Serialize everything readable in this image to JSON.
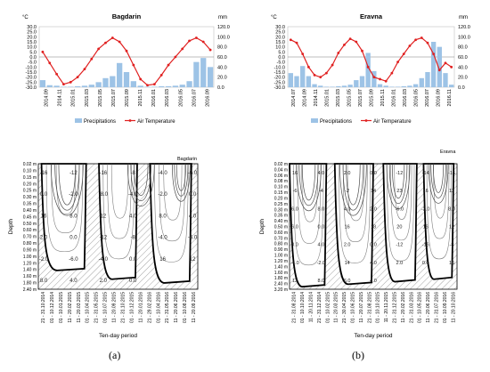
{
  "panel_labels": {
    "a": "(a)",
    "b": "(b)"
  },
  "colors": {
    "precip": "#9dc3e6",
    "temp": "#e02020",
    "zero_line": "#000000",
    "iso_thin": "#7f7f7f"
  },
  "chart_data": [
    {
      "type": "bar+line",
      "title": "Bagdarin",
      "left_unit": "°C",
      "right_unit": "mm",
      "left_ticks": [
        "30.0",
        "25.0",
        "20.0",
        "15.0",
        "10.0",
        "5.0",
        "0.0",
        "-5.0",
        "-10.0",
        "-15.0",
        "-20.0",
        "-25.0",
        "-30.0"
      ],
      "right_ticks": [
        "120.0",
        "100.0",
        "80.0",
        "60.0",
        "40.0",
        "20.0",
        "0.0"
      ],
      "ylim_left": [
        -30,
        30
      ],
      "ylim_right": [
        0,
        120
      ],
      "x_ticks": [
        "2014.09",
        "2014.11",
        "2015.01",
        "2015.03",
        "2015.05",
        "2015.07",
        "2015.09",
        "2015.11",
        "2016.01",
        "2016.03",
        "2016.05",
        "2016.07",
        "2016.09"
      ],
      "legend": [
        "Precipitations",
        "Air Temperature"
      ],
      "series": [
        {
          "name": "Precipitations",
          "kind": "bar",
          "values": [
            14,
            4,
            3,
            1,
            1,
            2,
            3,
            5,
            10,
            18,
            22,
            48,
            30,
            12,
            3,
            1,
            1,
            2,
            2,
            3,
            5,
            12,
            50,
            58,
            40
          ]
        },
        {
          "name": "Air Temperature",
          "kind": "line",
          "values": [
            5,
            -6,
            -17,
            -27,
            -25,
            -20,
            -12,
            -2,
            8,
            14,
            19,
            15,
            6,
            -8,
            -22,
            -28,
            -27,
            -18,
            -8,
            0,
            8,
            16,
            19,
            15,
            7
          ]
        }
      ]
    },
    {
      "type": "bar+line",
      "title": "Eravna",
      "left_unit": "°C",
      "right_unit": "mm",
      "left_ticks": [
        "30.0",
        "25.0",
        "20.0",
        "15.0",
        "10.0",
        "5.0",
        "0.0",
        "-5.0",
        "-10.0",
        "-15.0",
        "-20.0",
        "-25.0",
        "-30.0"
      ],
      "right_ticks": [
        "120.0",
        "100.0",
        "80.0",
        "60.0",
        "40.0",
        "20.0",
        "0.0"
      ],
      "ylim_left": [
        -30,
        30
      ],
      "ylim_right": [
        0,
        120
      ],
      "x_ticks": [
        "2014.07",
        "2014.09",
        "2014.11",
        "2015.01",
        "2015.03",
        "2015.05",
        "2015.07",
        "2015.09",
        "2015.11",
        "2016.01",
        "2016.03",
        "2016.05",
        "2016.07",
        "2016.09",
        "2016.11"
      ],
      "legend": [
        "Precipitations",
        "Air Temperature"
      ],
      "series": [
        {
          "name": "Precipitations",
          "kind": "bar",
          "values": [
            28,
            22,
            42,
            22,
            6,
            3,
            1,
            1,
            2,
            3,
            5,
            14,
            22,
            68,
            32,
            6,
            3,
            1,
            1,
            2,
            3,
            6,
            18,
            30,
            90,
            80,
            28,
            5
          ]
        },
        {
          "name": "Air Temperature",
          "kind": "line",
          "values": [
            17,
            14,
            3,
            -10,
            -18,
            -20,
            -16,
            -8,
            4,
            12,
            18,
            15,
            6,
            -10,
            -20,
            -22,
            -24,
            -16,
            -5,
            3,
            11,
            17,
            19,
            14,
            3,
            -13,
            -6,
            -10
          ]
        }
      ]
    },
    {
      "type": "contour",
      "title": "Bagdarin",
      "ylabel": "Depth",
      "xlabel": "Ten-day period",
      "y_ticks": [
        "0.02 m",
        "0.10 m",
        "0.15 m",
        "0.20 m",
        "0.25 m",
        "0.30 m",
        "0.35 m",
        "0.40 m",
        "0.45 m",
        "0.50 m",
        "0.60 m",
        "0.70 m",
        "0.80 m",
        "0.90 m",
        "1.00 m",
        "1.20 m",
        "1.40 m",
        "1.60 m",
        "1.80 m",
        "2.40 m"
      ],
      "x_ticks": [
        "21 - 31.10.2014",
        "01 - 10.12.2014",
        "01 - 10.01.2015",
        "11 - 20.02.2015",
        "11 - 20.03.2015",
        "01 - 10.04.2015",
        "21 - 31.05.2015",
        "01 - 10.07.2015",
        "11 - 20.09.2015",
        "21 - 31.10.2015",
        "01 - 10.12.2015",
        "11 - 20.01.2016",
        "21 - 29.02.2016",
        "01 - 10.04.2016",
        "21 - 31.05.2016",
        "11 - 20.06.2016",
        "01 - 10.08.2016",
        "11 - 20.09.2016"
      ],
      "labels": [
        "-16",
        "-12",
        "-16",
        "-8",
        "-4.0",
        "-6.0",
        "0.0",
        "-2.0",
        "-8.0",
        "-4.0",
        "-2.0",
        "0.0",
        "16",
        "8.0",
        "12",
        "4.0",
        "8.0",
        "4.0",
        "2.0",
        "0.0",
        "-12",
        "-8",
        "-4.0",
        "-6.0",
        "-2.0",
        "-6.0",
        "-4.0",
        "0.0",
        "16",
        "12",
        "8.0",
        "4.0",
        "2.0",
        "0.0"
      ]
    },
    {
      "type": "contour",
      "title": "Eravna",
      "ylabel": "Depth",
      "xlabel": "Ten-day period",
      "y_ticks": [
        "0.02 m",
        "0.04 m",
        "0.06 m",
        "0.08 m",
        "0.10 m",
        "0.15 m",
        "0.20 m",
        "0.25 m",
        "0.30 m",
        "0.35 m",
        "0.40 m",
        "0.50 m",
        "0.60 m",
        "0.70 m",
        "0.80 m",
        "0.90 m",
        "1.00 m",
        "1.20 m",
        "1.40 m",
        "1.60 m",
        "1.80 m",
        "2.40 m",
        "3.20 m"
      ],
      "x_ticks": [
        "21 - 31.08.2014",
        "01 - 10.10.2014",
        "11 - 20.11.2014",
        "21 - 31.12.2014",
        "01 - 10.02.2015",
        "11 - 20.03.2015",
        "21 - 30.04.2015",
        "01 - 10.06.2015",
        "11 - 20.07.2015",
        "21 - 31.08.2015",
        "01 - 10.10.2015",
        "11 - 20.11.2015",
        "21 - 31.12.2015",
        "11 - 20.02.2016",
        "21 - 31.03.2016",
        "01 - 10.05.2016",
        "11 - 20.06.2016",
        "21 - 31.07.2016",
        "01 - 10.09.2016",
        "11 - 20.10.2016"
      ],
      "labels": [
        "16",
        "4.0",
        "2.0",
        "0.0",
        "-12",
        "-14",
        "-16",
        "-6",
        "-4",
        "-2",
        "14",
        "23",
        "16",
        "12",
        "6.0",
        "8.0",
        "4.0",
        "2.0",
        "-6.0",
        "-2.0",
        "8.0",
        "6.0",
        "0.0",
        "16",
        "18",
        "20",
        "16",
        "12",
        "8.0",
        "4.0",
        "2.0",
        "0.0",
        "-12",
        "-16",
        "-8",
        "-4.0",
        "-2.0",
        "14",
        "4.0",
        "2.0",
        "0.0",
        "16",
        "12",
        "8.0",
        "6.0",
        "4.0"
      ]
    }
  ]
}
